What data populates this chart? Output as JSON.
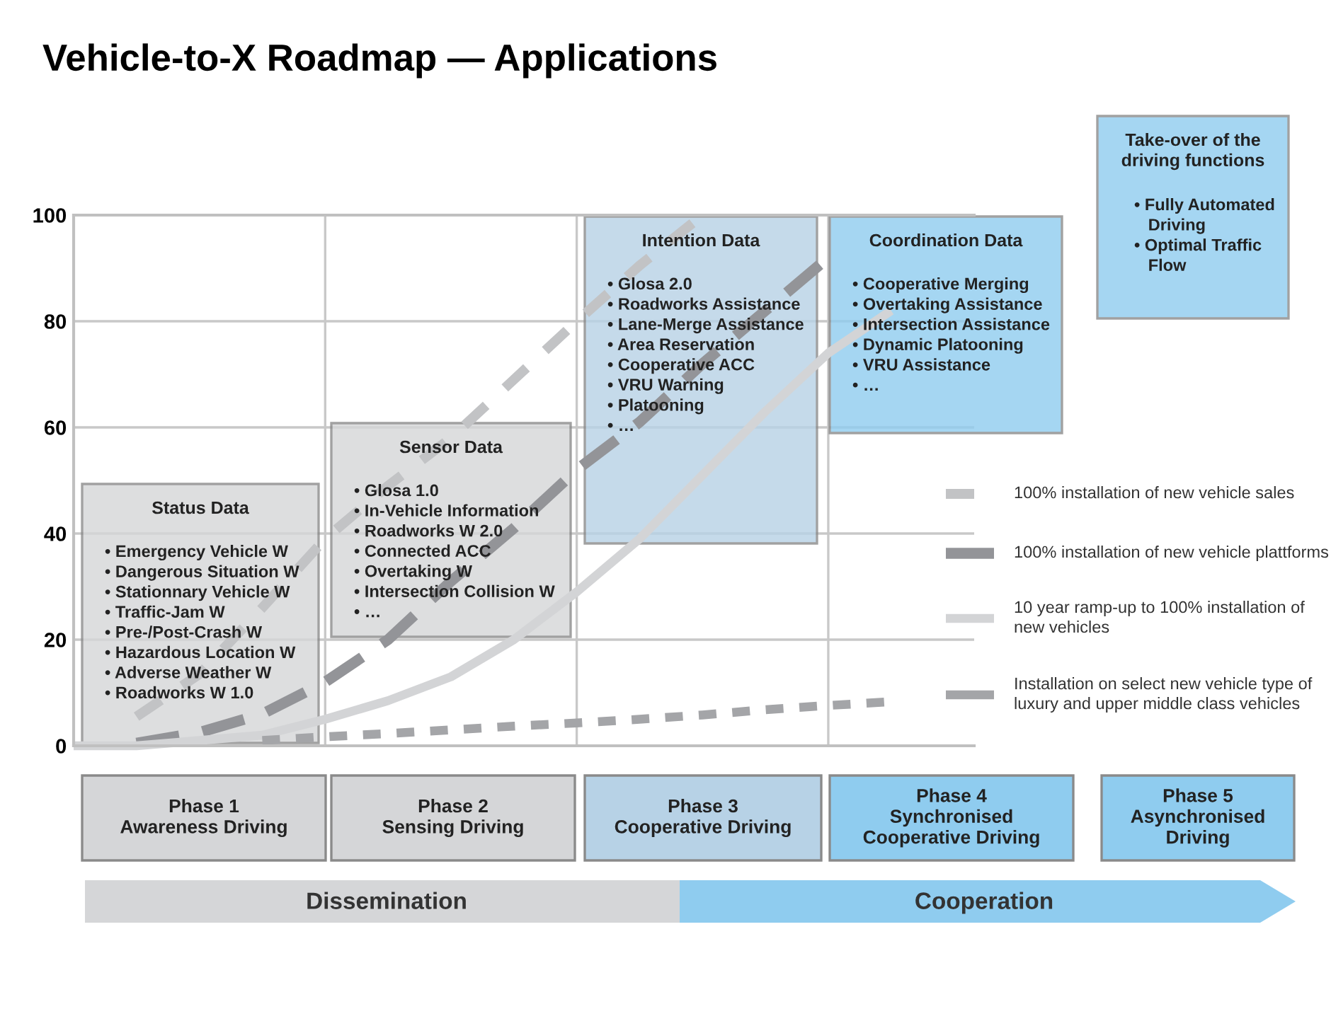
{
  "chart_data": {
    "type": "line",
    "title": "Vehicle-to-X Roadmap — Applications",
    "categories": [
      null,
      null,
      null,
      null,
      null,
      null,
      null,
      null,
      null,
      null,
      null,
      null,
      null,
      null,
      null
    ],
    "ylim": [
      0,
      100
    ],
    "yticks": [
      0,
      20,
      40,
      60,
      80,
      100
    ],
    "grid": true,
    "legend": "right",
    "tick_labels": "y",
    "series": [
      {
        "name": "100% installation of new vehicle sales",
        "color": "#c2c3c5",
        "line_style": "dashed",
        "values": [
          null,
          5.5,
          13.5,
          26,
          39,
          49,
          58,
          69,
          80,
          90.5,
          100,
          null,
          null,
          null,
          null
        ]
      },
      {
        "name": "100% installation of new vehicle plattforms",
        "color": "#939498",
        "line_style": "dashed",
        "values": [
          null,
          0.5,
          2.5,
          6,
          12,
          20,
          31,
          41,
          52,
          61,
          72,
          82,
          92,
          null,
          null
        ]
      },
      {
        "name": "10 year ramp-up to 100% installation of new vehicles",
        "color": "#d3d4d6",
        "line_style": "solid",
        "values": [
          0,
          0,
          1,
          2,
          5,
          8.5,
          13,
          20,
          29,
          39,
          51,
          63,
          74,
          82,
          null
        ]
      },
      {
        "name": "Installation on select new vehicle type of luxury and upper middle class vehicles",
        "color": "#a4a5a8",
        "line_style": "dashed",
        "values": [
          null,
          null,
          null,
          1,
          1.7,
          2.3,
          3,
          3.7,
          4.3,
          5,
          5.8,
          6.8,
          7.6,
          8.3,
          null
        ]
      }
    ],
    "annotations": [
      "Status Data",
      "• Emergency Vehicle W\n• Dangerous Situation W\n• Stationnary Vehicle W\n• Traffic-Jam W\n• Pre-/Post-Crash W\n• Hazardous Location W\n• Adverse Weather W\n• Roadworks W 1.0",
      "Sensor Data",
      "• Glosa 1.0\n• In-Vehicle Information\n• Roadworks W 2.0\n• Connected ACC\n• Overtaking W\n• Intersection Collision W\n• …",
      "Intention Data",
      "• Glosa 2.0\n• Roadworks Assistance\n• Lane-Merge Assistance\n• Area Reservation\n• Cooperative ACC\n• VRU Warning\n• Platooning\n• …",
      "Coordination Data",
      "• Cooperative Merging\n• Overtaking Assistance\n• Intersection Assistance\n• Dynamic Platooning\n• VRU Assistance\n• …",
      "Take-over of the\ndriving functions",
      "• Fully Automated\n   Driving\n• Optimal Traffic\n   Flow",
      "Phase 1\nAwareness Driving",
      "Phase 2\nSensing Driving",
      "Phase 3\nCooperative Driving",
      "Phase 4\nSynchronised\nCooperative Driving",
      "Phase 5\nAsynchronised\nDriving",
      "Dissemination",
      "Cooperation"
    ]
  }
}
